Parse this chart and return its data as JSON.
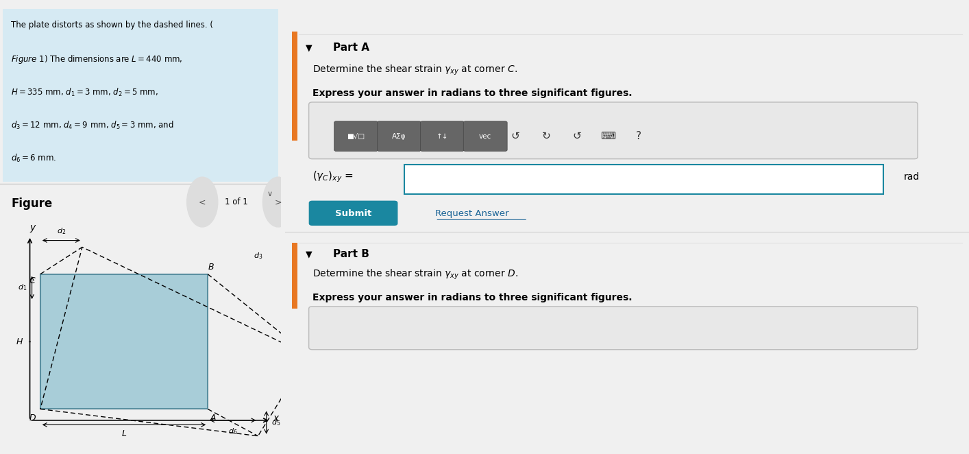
{
  "problem_text_lines": [
    "The plate distorts as shown by the dashed lines. (",
    "Figure 1) The dimensions are $L = 440$ mm,",
    "$H = 335$ mm, $d_1 = 3$ mm, $d_2 = 5$ mm,",
    "$d_3 = 12$ mm, $d_4 = 9$ mm, $d_5 = 3$ mm, and",
    "$d_6 = 6$ mm."
  ],
  "figure_label": "Figure",
  "nav_text": "1 of 1",
  "part_a_title": "Part A",
  "part_a_text1": "Determine the shear strain $\\gamma_{xy}$ at corner $C$.",
  "part_a_text2": "Express your answer in radians to three significant figures.",
  "part_a_input_label": "$(\\gamma_C)_{xy}$ =",
  "part_a_input_suffix": "rad",
  "part_b_title": "Part B",
  "part_b_text1": "Determine the shear strain $\\gamma_{xy}$ at corner $D$.",
  "part_b_text2": "Express your answer in radians to three significant figures.",
  "submit_color": "#1a87a0",
  "link_color": "#1a6496",
  "orange_bar_color": "#e87722",
  "left_bg_color": "#e8f4f8",
  "problem_bg_color": "#d6eaf3",
  "plate_fill_color": "#a8cdd8",
  "plate_edge_color": "#5a8fa0",
  "divider_color": "#cccccc",
  "right_bg_color": "#f0f0f0",
  "input_border_color": "#1a87a0",
  "toolbar_bg": "#888888",
  "toolbar_btn_bg": "#666666"
}
